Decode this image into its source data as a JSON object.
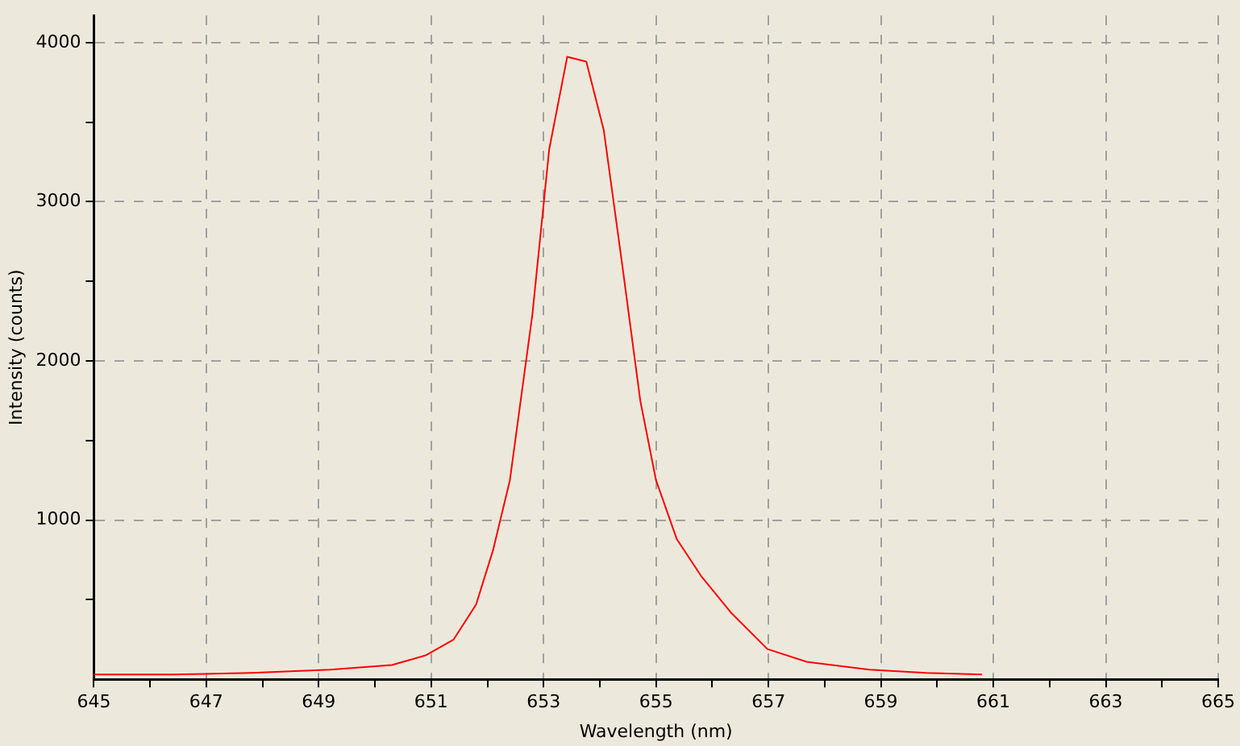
{
  "chart_data": {
    "type": "line",
    "xlabel": "Wavelength (nm)",
    "ylabel": "Intensity (counts)",
    "x": [
      645,
      646.4,
      647.8,
      649.2,
      650.3,
      650.9,
      651.4,
      651.8,
      652.1,
      652.4,
      652.8,
      653.1,
      653.42,
      653.76,
      654.07,
      654.4,
      654.72,
      655.0,
      655.37,
      655.8,
      656.33,
      656.98,
      657.68,
      658.8,
      659.8,
      660.8
    ],
    "series": [
      {
        "color": "#ff0000",
        "values": [
          30,
          30,
          40,
          60,
          90,
          150,
          250,
          470,
          810,
          1250,
          2290,
          3330,
          3910,
          3880,
          3450,
          2600,
          1750,
          1250,
          880,
          650,
          420,
          190,
          110,
          60,
          40,
          30
        ]
      }
    ],
    "xlim": [
      645,
      665
    ],
    "ylim": [
      0,
      4170
    ],
    "xticks": [
      645,
      {
        "value": 646,
        "label": null
      },
      647,
      {
        "value": 648,
        "label": null
      },
      649,
      {
        "value": 650,
        "label": null
      },
      651,
      {
        "value": 652,
        "label": null
      },
      653,
      {
        "value": 654,
        "label": null
      },
      655,
      {
        "value": 656,
        "label": null
      },
      657,
      {
        "value": 658,
        "label": null
      },
      659,
      {
        "value": 660,
        "label": null
      },
      661,
      {
        "value": 662,
        "label": null
      },
      663,
      {
        "value": 664,
        "label": null
      },
      665
    ],
    "yticks": [
      {
        "value": 500,
        "label": null
      },
      1000,
      {
        "value": 1500,
        "label": null
      },
      2000,
      {
        "value": 2500,
        "label": null
      },
      3000,
      {
        "value": 3500,
        "label": null
      },
      4000
    ],
    "grid": true,
    "legend": false,
    "marker": "none",
    "line_style": "solid"
  }
}
